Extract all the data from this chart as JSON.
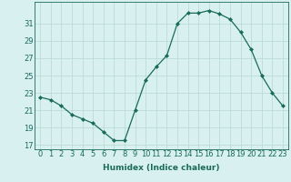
{
  "x": [
    0,
    1,
    2,
    3,
    4,
    5,
    6,
    7,
    8,
    9,
    10,
    11,
    12,
    13,
    14,
    15,
    16,
    17,
    18,
    19,
    20,
    21,
    22,
    23
  ],
  "y": [
    22.5,
    22.2,
    21.5,
    20.5,
    20.0,
    19.5,
    18.5,
    17.5,
    17.5,
    21.0,
    24.5,
    26.0,
    27.3,
    31.0,
    32.2,
    32.2,
    32.5,
    32.1,
    31.5,
    30.0,
    28.0,
    25.0,
    23.0,
    21.5
  ],
  "xlabel": "Humidex (Indice chaleur)",
  "xlim": [
    -0.5,
    23.5
  ],
  "ylim": [
    16.5,
    33.5
  ],
  "yticks": [
    17,
    19,
    21,
    23,
    25,
    27,
    29,
    31
  ],
  "xticks": [
    0,
    1,
    2,
    3,
    4,
    5,
    6,
    7,
    8,
    9,
    10,
    11,
    12,
    13,
    14,
    15,
    16,
    17,
    18,
    19,
    20,
    21,
    22,
    23
  ],
  "line_color": "#1a6b5a",
  "marker": "D",
  "marker_size": 2.0,
  "bg_color": "#d8f0f0",
  "grid_color": "#b8d8d0",
  "label_fontsize": 6.5,
  "tick_fontsize": 6.0
}
